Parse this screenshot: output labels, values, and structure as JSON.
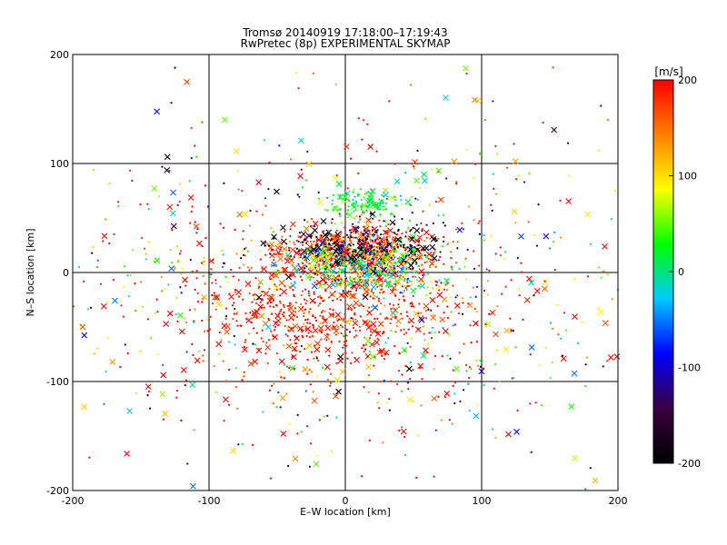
{
  "chart_data": {
    "type": "scatter",
    "title": "Tromsø 20140919 17:18:00–17:19:43",
    "subtitle": "RwPretec (8p) EXPERIMENTAL SKYMAP",
    "xlabel": "E–W location [km]",
    "ylabel": "N–S location [km]",
    "xlim": [
      -200,
      200
    ],
    "ylim": [
      -200,
      200
    ],
    "x_ticks": [
      -200,
      -100,
      0,
      100,
      200
    ],
    "y_ticks": [
      -200,
      -100,
      0,
      100,
      200
    ],
    "x_tick_labels": [
      "-200",
      "-100",
      "0",
      "100",
      "200"
    ],
    "y_tick_labels": [
      "-200",
      "-100",
      "0",
      "100",
      "200"
    ],
    "grid": true,
    "markers": [
      "dot",
      "x"
    ],
    "colorbar": {
      "label": "[m/s]",
      "range": [
        -200,
        200
      ],
      "ticks": [
        -200,
        -100,
        0,
        100,
        200
      ],
      "tick_labels": [
        "-200",
        "-100",
        "0",
        "100",
        "200"
      ],
      "colormap": [
        "#000000",
        "#3a0040",
        "#0000ff",
        "#00c8ff",
        "#00ff00",
        "#ffff00",
        "#ff8000",
        "#ff0000"
      ]
    },
    "clusters": [
      {
        "cx": -10,
        "cy": -30,
        "sx": 45,
        "sy": 30,
        "n": 700,
        "vmean": 190,
        "vspread": 25
      },
      {
        "cx": 5,
        "cy": 20,
        "sx": 30,
        "sy": 10,
        "n": 450,
        "vmean": 180,
        "vspread": 30
      },
      {
        "cx": 15,
        "cy": 5,
        "sx": 25,
        "sy": 12,
        "n": 500,
        "vmean": 20,
        "vspread": 70
      },
      {
        "cx": 10,
        "cy": 25,
        "sx": 30,
        "sy": 10,
        "n": 250,
        "vmean": -180,
        "vspread": 40
      },
      {
        "cx": 15,
        "cy": 63,
        "sx": 15,
        "sy": 6,
        "n": 120,
        "vmean": 20,
        "vspread": 25
      },
      {
        "cx": 0,
        "cy": -20,
        "sx": 110,
        "sy": 70,
        "n": 650,
        "vmean": 150,
        "vspread": 110
      },
      {
        "cx": 0,
        "cy": 0,
        "sx": 130,
        "sy": 100,
        "n": 280,
        "vmean": 0,
        "vspread": 200
      }
    ]
  }
}
